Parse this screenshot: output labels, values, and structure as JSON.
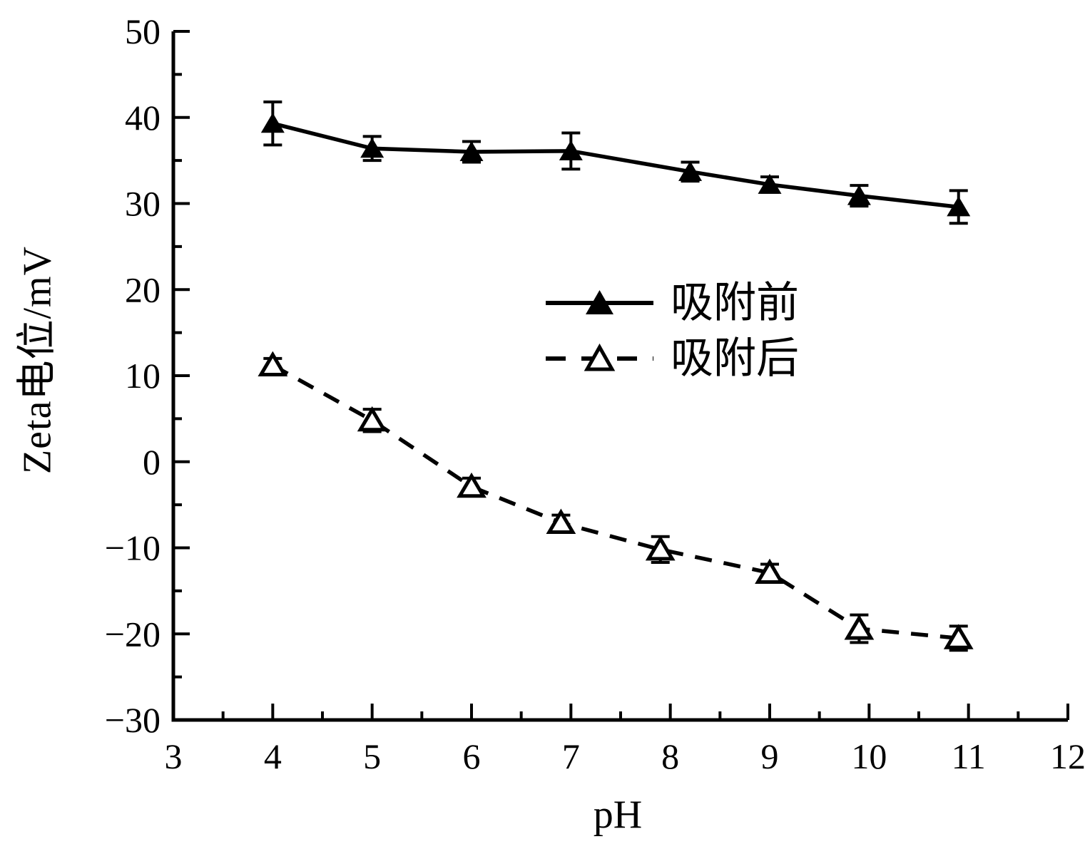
{
  "chart_data": {
    "type": "line",
    "title": "",
    "xlabel": "pH",
    "ylabel": "Zeta电位/mV",
    "grid": false,
    "legend_position": "inside-center-right",
    "line_color": "#000000",
    "background_color": "#ffffff",
    "x_axis": {
      "min": 3,
      "max": 12,
      "tick_values": [
        3,
        4,
        5,
        6,
        7,
        8,
        9,
        10,
        11,
        12
      ],
      "tick_labels": [
        "3",
        "4",
        "5",
        "6",
        "7",
        "8",
        "9",
        "10",
        "11",
        "12"
      ],
      "minor_step": 0.5
    },
    "y_axis": {
      "min": -30,
      "max": 50,
      "tick_values": [
        50,
        40,
        30,
        20,
        10,
        0,
        -10,
        -20,
        -30
      ],
      "tick_labels": [
        "50",
        "40",
        "30",
        "20",
        "10",
        "0",
        "−10",
        "−20",
        "−30"
      ],
      "minor_step": 5
    },
    "series": [
      {
        "name": "吸附前",
        "marker": "filled-triangle",
        "line_style": "solid",
        "x": [
          4.0,
          5.0,
          6.0,
          7.0,
          8.2,
          9.0,
          9.9,
          10.9
        ],
        "y": [
          39.3,
          36.4,
          36.0,
          36.1,
          33.7,
          32.2,
          30.9,
          29.6
        ],
        "y_err": [
          2.5,
          1.4,
          1.2,
          2.1,
          1.1,
          0.9,
          1.2,
          1.9
        ]
      },
      {
        "name": "吸附后",
        "marker": "open-triangle",
        "line_style": "dashed",
        "x": [
          4.0,
          5.0,
          6.0,
          6.9,
          7.9,
          9.0,
          9.9,
          10.9
        ],
        "y": [
          11.2,
          4.8,
          -2.9,
          -7.1,
          -10.2,
          -12.9,
          -19.4,
          -20.5
        ],
        "y_err": [
          0.8,
          1.3,
          1.0,
          0.9,
          1.5,
          1.0,
          1.6,
          1.4
        ]
      }
    ]
  }
}
